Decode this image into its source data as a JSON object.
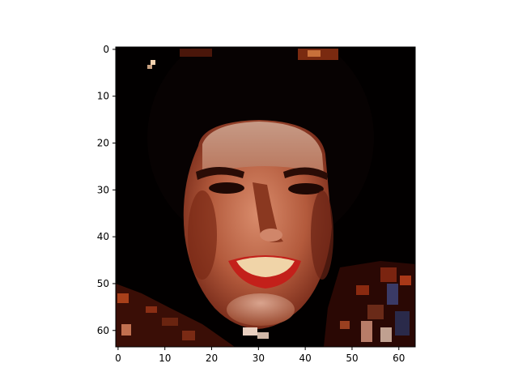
{
  "figure": {
    "background": "#ffffff"
  },
  "image": {
    "subject": "low-resolution pixelated portrait",
    "grid_size": [
      64,
      64
    ],
    "background_color": "#020000",
    "skin_color": "#b35a3c",
    "hair_color": "#0a0303",
    "lip_color": "#c3201a"
  },
  "axes": {
    "x_ticks": [
      0,
      10,
      20,
      30,
      40,
      50,
      60
    ],
    "y_ticks": [
      0,
      10,
      20,
      30,
      40,
      50,
      60
    ],
    "x_tick_labels": [
      "0",
      "10",
      "20",
      "30",
      "40",
      "50",
      "60"
    ],
    "y_tick_labels": [
      "0",
      "10",
      "20",
      "30",
      "40",
      "50",
      "60"
    ],
    "xlim": [
      -0.5,
      63.5
    ],
    "ylim": [
      63.5,
      -0.5
    ],
    "origin": "upper",
    "grid": false
  }
}
